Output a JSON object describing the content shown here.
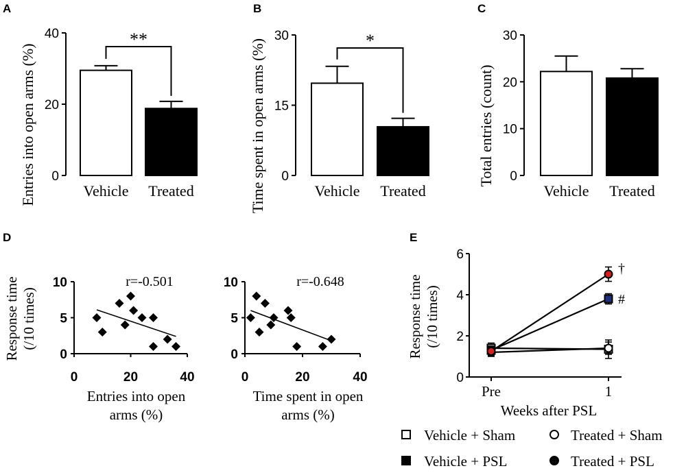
{
  "chart_data": [
    {
      "panel": "A",
      "type": "bar",
      "categories": [
        "Vehicle",
        "Treated"
      ],
      "values": [
        29.5,
        18.8
      ],
      "errors": [
        1.3,
        2.0
      ],
      "fills": [
        "#ffffff",
        "#000000"
      ],
      "ylabel": "Entries into open arms (%)",
      "ylim": [
        0,
        40
      ],
      "yticks": [
        "0",
        "20",
        "40"
      ],
      "ytick_values": [
        0,
        20,
        40
      ],
      "significance": "**"
    },
    {
      "panel": "B",
      "type": "bar",
      "categories": [
        "Vehicle",
        "Treated"
      ],
      "values": [
        19.7,
        10.4
      ],
      "errors": [
        3.6,
        1.8
      ],
      "fills": [
        "#ffffff",
        "#000000"
      ],
      "ylabel": "Time spent in open arms (%)",
      "ylim": [
        0,
        30
      ],
      "yticks": [
        "0",
        "15",
        "30"
      ],
      "ytick_values": [
        0,
        15,
        30
      ],
      "significance": "*"
    },
    {
      "panel": "C",
      "type": "bar",
      "categories": [
        "Vehicle",
        "Treated"
      ],
      "values": [
        22.2,
        20.8
      ],
      "errors": [
        3.3,
        2.0
      ],
      "fills": [
        "#ffffff",
        "#000000"
      ],
      "ylabel": "Total entries (count)",
      "ylim": [
        0,
        30
      ],
      "yticks": [
        "0",
        "10",
        "20",
        "30"
      ],
      "ytick_values": [
        0,
        10,
        20,
        30
      ]
    },
    {
      "panel": "D",
      "type": "scatter",
      "subplot": "left",
      "points": [
        [
          8,
          5
        ],
        [
          10,
          3
        ],
        [
          16,
          7
        ],
        [
          18,
          4
        ],
        [
          20,
          8
        ],
        [
          21,
          6
        ],
        [
          24,
          5
        ],
        [
          28,
          1
        ],
        [
          28,
          5
        ],
        [
          33,
          2
        ],
        [
          36,
          1
        ]
      ],
      "fit": {
        "x": [
          8,
          36
        ],
        "y": [
          6.1,
          2.4
        ]
      },
      "annotation": "r=-0.501",
      "xlabel_lines": [
        "Entries into open",
        "arms (%)"
      ],
      "ylabel_lines": [
        "Response time",
        "(/10 times)"
      ],
      "xlim": [
        0,
        40
      ],
      "ylim": [
        0,
        10
      ],
      "xticks": [
        "0",
        "20",
        "40"
      ],
      "xtick_values": [
        0,
        20,
        40
      ],
      "yticks": [
        "0",
        "5",
        "10"
      ],
      "ytick_values": [
        0,
        5,
        10
      ]
    },
    {
      "panel": "D",
      "type": "scatter",
      "subplot": "right",
      "points": [
        [
          2,
          5
        ],
        [
          4,
          8
        ],
        [
          5,
          3
        ],
        [
          7,
          7
        ],
        [
          9,
          4
        ],
        [
          10,
          5
        ],
        [
          15,
          6
        ],
        [
          16,
          5
        ],
        [
          18,
          1
        ],
        [
          27,
          1
        ],
        [
          30,
          2
        ]
      ],
      "fit": {
        "x": [
          2,
          30
        ],
        "y": [
          6.0,
          1.8
        ]
      },
      "annotation": "r=-0.648",
      "xlabel_lines": [
        "Time spent in open",
        "arms (%)"
      ],
      "xlim": [
        0,
        40
      ],
      "ylim": [
        0,
        10
      ],
      "xticks": [
        "0",
        "20",
        "40"
      ],
      "xtick_values": [
        0,
        20,
        40
      ],
      "yticks": [
        "0",
        "5",
        "10"
      ],
      "ytick_values": [
        0,
        5,
        10
      ]
    },
    {
      "panel": "E",
      "type": "line",
      "categories": [
        "Pre",
        "1"
      ],
      "xlabel": "Weeks after PSL",
      "ylabel_lines": [
        "Response time",
        "(/10 times)"
      ],
      "ylim": [
        0,
        6
      ],
      "yticks": [
        "0",
        "2",
        "4",
        "6"
      ],
      "ytick_values": [
        0,
        2,
        4,
        6
      ],
      "series": [
        {
          "name": "Vehicle + Sham",
          "marker": "square",
          "fill": "#ffffff",
          "values": [
            1.4,
            1.35
          ],
          "errors": [
            0.25,
            0.45
          ]
        },
        {
          "name": "Treated + Sham",
          "marker": "circle",
          "fill": "#ffffff",
          "values": [
            1.2,
            1.4
          ],
          "errors": [
            0.2,
            0.3
          ]
        },
        {
          "name": "Vehicle + PSL",
          "marker": "square",
          "fill": "#1f2f7a",
          "values": [
            1.3,
            3.8
          ],
          "errors": [
            0.2,
            0.25
          ],
          "annotation": "#"
        },
        {
          "name": "Treated + PSL",
          "marker": "circle",
          "fill": "#d42020",
          "values": [
            1.25,
            5.0
          ],
          "errors": [
            0.2,
            0.35
          ],
          "annotation": "†"
        }
      ],
      "legend": [
        "Vehicle + Sham",
        "Treated + Sham",
        "Vehicle + PSL",
        "Treated + PSL"
      ]
    }
  ]
}
